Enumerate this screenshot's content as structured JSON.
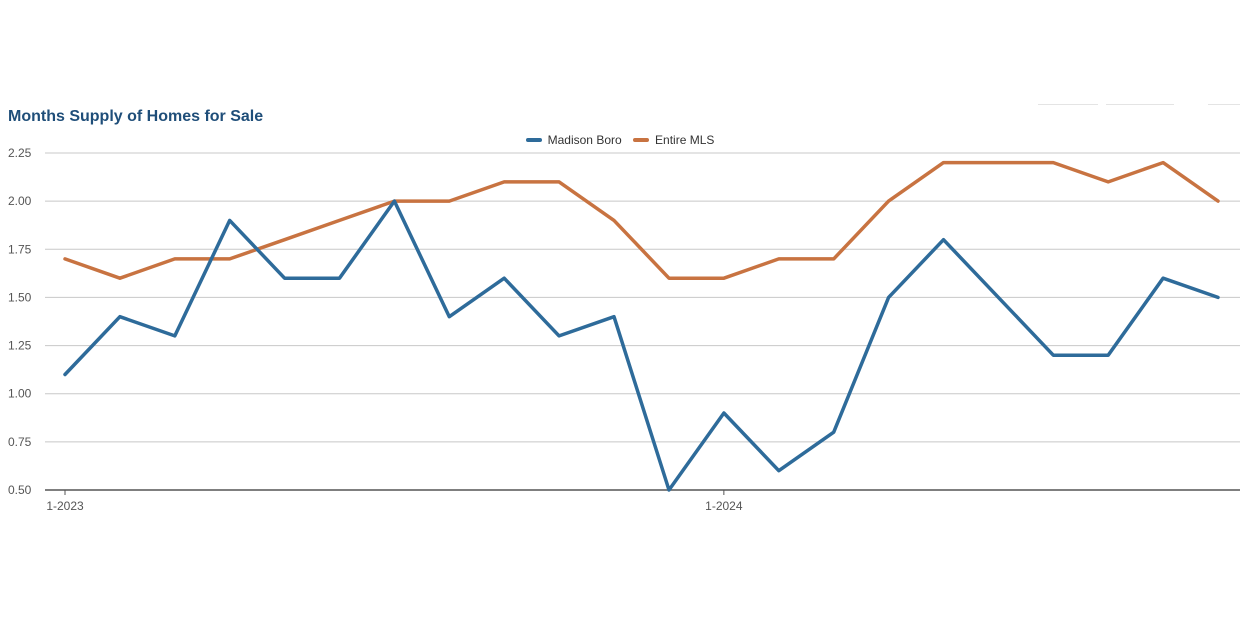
{
  "chart_data": {
    "type": "line",
    "title": "Months Supply of Homes for Sale",
    "xlabel": "",
    "ylabel": "",
    "x": [
      "1-2023",
      "2-2023",
      "3-2023",
      "4-2023",
      "5-2023",
      "6-2023",
      "7-2023",
      "8-2023",
      "9-2023",
      "10-2023",
      "11-2023",
      "12-2023",
      "1-2024",
      "2-2024",
      "3-2024",
      "4-2024",
      "5-2024",
      "6-2024",
      "7-2024",
      "8-2024",
      "9-2024",
      "10-2024"
    ],
    "x_tick_labels": [
      "1-2023",
      "1-2024"
    ],
    "y_ticks": [
      "0.50",
      "0.75",
      "1.00",
      "1.25",
      "1.50",
      "1.75",
      "2.00",
      "2.25"
    ],
    "ylim": [
      0.5,
      2.25
    ],
    "grid": true,
    "legend_position": "top-center",
    "series": [
      {
        "name": "Madison Boro",
        "color": "#2e6b9a",
        "values": [
          1.1,
          1.4,
          1.3,
          1.9,
          1.6,
          1.6,
          2.0,
          1.4,
          1.6,
          1.3,
          1.4,
          0.5,
          0.9,
          0.6,
          0.8,
          1.5,
          1.8,
          1.5,
          1.2,
          1.2,
          1.6,
          1.5
        ]
      },
      {
        "name": "Entire MLS",
        "color": "#c87341",
        "values": [
          1.7,
          1.6,
          1.7,
          1.7,
          1.8,
          1.9,
          2.0,
          2.0,
          2.1,
          2.1,
          1.9,
          1.6,
          1.6,
          1.7,
          1.7,
          2.0,
          2.2,
          2.2,
          2.2,
          2.1,
          2.2,
          2.0
        ]
      }
    ]
  }
}
